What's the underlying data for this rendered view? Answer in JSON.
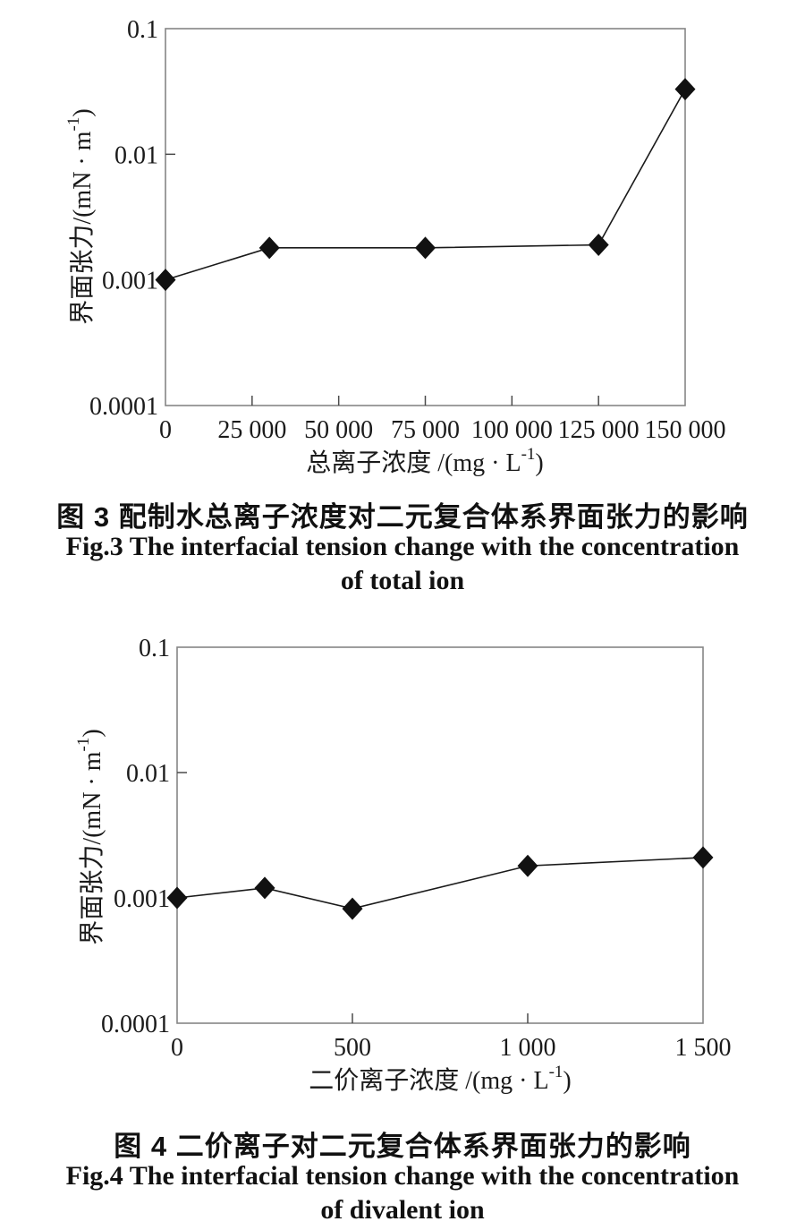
{
  "page": {
    "background": "#ffffff"
  },
  "chart_data": [
    {
      "id": "fig3",
      "type": "line",
      "marker": "diamond",
      "caption_zh": "图 3  配制水总离子浓度对二元复合体系界面张力的影响",
      "caption_en_line1": "Fig.3 The interfacial tension change with the concentration",
      "caption_en_line2": "of total ion",
      "x": [
        0,
        30000,
        75000,
        125000,
        150000
      ],
      "y": [
        0.001,
        0.0018,
        0.0018,
        0.0019,
        0.033
      ],
      "xlim": [
        0,
        150000
      ],
      "ylim": [
        0.0001,
        0.1
      ],
      "y_scale": "log",
      "grid": false,
      "x_ticks": [
        {
          "v": 0,
          "label": "0"
        },
        {
          "v": 25000,
          "label": "25 000"
        },
        {
          "v": 50000,
          "label": "50 000"
        },
        {
          "v": 75000,
          "label": "75 000"
        },
        {
          "v": 100000,
          "label": "100 000"
        },
        {
          "v": 125000,
          "label": "125 000"
        },
        {
          "v": 150000,
          "label": "150 000"
        }
      ],
      "y_ticks": [
        {
          "v": 0.1,
          "label": "0.1"
        },
        {
          "v": 0.01,
          "label": "0.01"
        },
        {
          "v": 0.001,
          "label": "0.001"
        },
        {
          "v": 0.0001,
          "label": "0.0001"
        }
      ],
      "xlabel": {
        "pre": "总离子浓度 /(mg · L",
        "sup": "-1",
        "post": ")"
      },
      "ylabel": {
        "pre": "界面张力/(mN · m",
        "sup": "-1",
        "post": ")"
      },
      "colors": {
        "line": "#1a1a1a",
        "marker": "#111111",
        "frame": "#858585",
        "tick": "#4a4a4a",
        "text": "#1a1a1a"
      }
    },
    {
      "id": "fig4",
      "type": "line",
      "marker": "diamond",
      "caption_zh": "图 4  二价离子对二元复合体系界面张力的影响",
      "caption_en_line1": "Fig.4 The interfacial tension change with the concentration",
      "caption_en_line2": "of divalent ion",
      "x": [
        0,
        250,
        500,
        1000,
        1500
      ],
      "y": [
        0.001,
        0.0012,
        0.00082,
        0.0018,
        0.0021
      ],
      "xlim": [
        0,
        1500
      ],
      "ylim": [
        0.0001,
        0.1
      ],
      "y_scale": "log",
      "grid": false,
      "x_ticks": [
        {
          "v": 0,
          "label": "0"
        },
        {
          "v": 500,
          "label": "500"
        },
        {
          "v": 1000,
          "label": "1 000"
        },
        {
          "v": 1500,
          "label": "1 500"
        }
      ],
      "y_ticks": [
        {
          "v": 0.1,
          "label": "0.1"
        },
        {
          "v": 0.01,
          "label": "0.01"
        },
        {
          "v": 0.001,
          "label": "0.001"
        },
        {
          "v": 0.0001,
          "label": "0.0001"
        }
      ],
      "xlabel": {
        "pre": "二价离子浓度 /(mg · L",
        "sup": "-1",
        "post": ")"
      },
      "ylabel": {
        "pre": "界面张力/(mN · m",
        "sup": "-1",
        "post": ")"
      },
      "colors": {
        "line": "#1a1a1a",
        "marker": "#111111",
        "frame": "#858585",
        "tick": "#4a4a4a",
        "text": "#1a1a1a"
      }
    }
  ]
}
